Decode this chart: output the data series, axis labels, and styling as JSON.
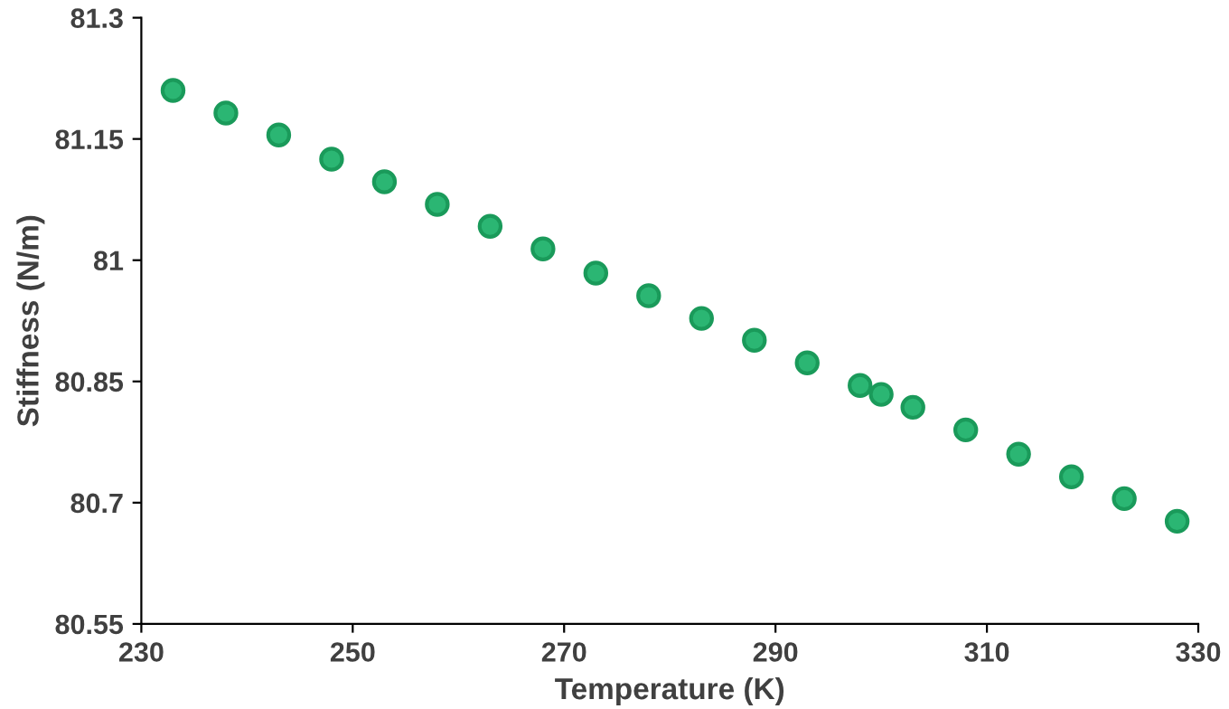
{
  "chart_data": {
    "type": "scatter",
    "xlabel": "Temperature (K)",
    "ylabel": "Stiffness (N/m)",
    "x": [
      233,
      238,
      243,
      248,
      253,
      258,
      263,
      268,
      273,
      278,
      283,
      288,
      293,
      298,
      300,
      303,
      308,
      313,
      318,
      323,
      328
    ],
    "series": [
      {
        "color": "#2bb673",
        "values": [
          81.21,
          81.182,
          81.155,
          81.125,
          81.097,
          81.069,
          81.042,
          81.014,
          80.984,
          80.956,
          80.928,
          80.901,
          80.873,
          80.845,
          80.834,
          80.818,
          80.79,
          80.76,
          80.732,
          80.705,
          80.677
        ]
      }
    ],
    "xlim": [
      230,
      330
    ],
    "xticks": [
      230,
      250,
      270,
      290,
      310,
      330
    ],
    "ylim": [
      80.55,
      81.3
    ],
    "yticks": [
      80.55,
      80.7,
      80.85,
      81,
      81.15,
      81.3
    ],
    "marker": "circle",
    "grid": false,
    "legend": false
  }
}
